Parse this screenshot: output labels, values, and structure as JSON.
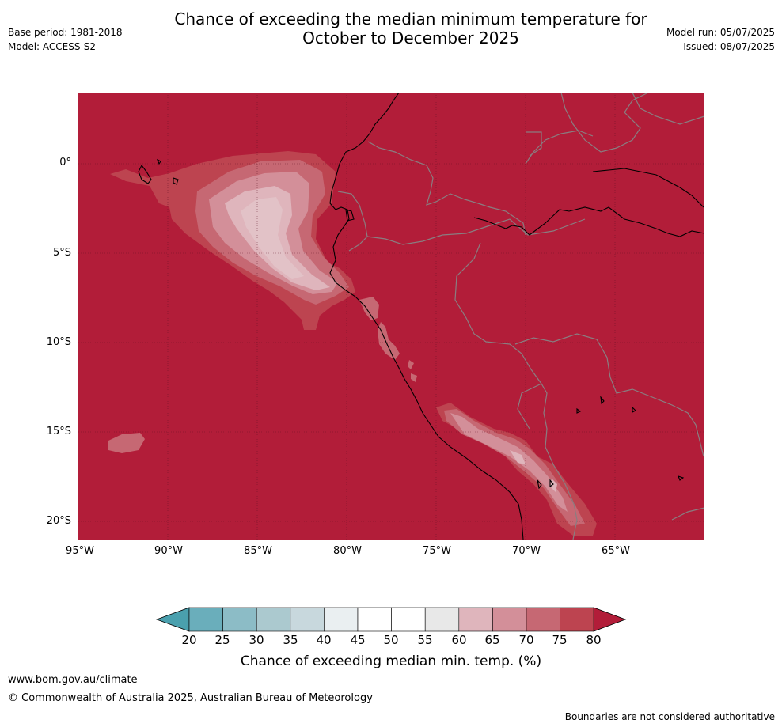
{
  "header": {
    "title_line1": "Chance of exceeding the median minimum temperature for",
    "title_line2": "October to December 2025",
    "base_period": "Base period: 1981-2018",
    "model": "Model: ACCESS-S2",
    "model_run": "Model run: 05/07/2025",
    "issued": "Issued: 08/07/2025"
  },
  "map": {
    "background_color": "#b21d39",
    "lat_labels": [
      "0°",
      "5°S",
      "10°S",
      "15°S",
      "20°S"
    ],
    "lon_labels": [
      "95°W",
      "90°W",
      "85°W",
      "80°W",
      "75°W",
      "70°W",
      "65°W"
    ]
  },
  "colorbar": {
    "title": "Chance of exceeding median min. temp. (%)",
    "ticks": [
      "20",
      "25",
      "30",
      "35",
      "40",
      "45",
      "50",
      "55",
      "60",
      "65",
      "70",
      "75",
      "80"
    ],
    "colors": [
      "#4aa0ae",
      "#6aaebb",
      "#8cbcc6",
      "#abc9cf",
      "#c8d8dd",
      "#eaeff1",
      "#ffffff",
      "#ffffff",
      "#e8e8e8",
      "#dfb5bc",
      "#d38f99",
      "#c66873",
      "#bd4450",
      "#b21d39"
    ]
  },
  "footer": {
    "url": "www.bom.gov.au/climate",
    "copyright": "© Commonwealth of Australia 2025, Australian Bureau of Meteorology",
    "note": "Boundaries are not considered authoritative"
  }
}
